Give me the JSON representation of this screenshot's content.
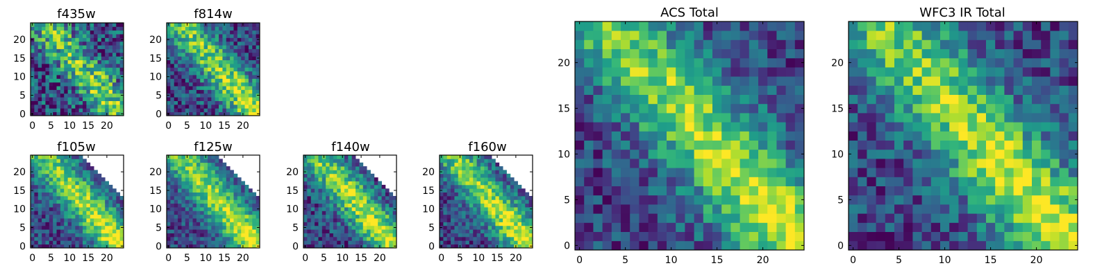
{
  "colormap": "viridis",
  "axis_color": "#000000",
  "chart_data": [
    {
      "type": "heatmap",
      "title": "f435w",
      "grid": false,
      "xlim": [
        0,
        24
      ],
      "ylim": [
        0,
        24
      ],
      "xticks": [
        "0",
        "5",
        "10",
        "15",
        "20"
      ],
      "yticks": [
        "0",
        "5",
        "10",
        "15",
        "20"
      ],
      "mask": "none",
      "band_strength": 0.55,
      "noise": 0.34,
      "seed": 11
    },
    {
      "type": "heatmap",
      "title": "f814w",
      "grid": false,
      "xlim": [
        0,
        24
      ],
      "ylim": [
        0,
        24
      ],
      "xticks": [
        "0",
        "5",
        "10",
        "15",
        "20"
      ],
      "yticks": [
        "0",
        "5",
        "10",
        "15",
        "20"
      ],
      "mask": "none",
      "band_strength": 0.65,
      "noise": 0.26,
      "seed": 23
    },
    {
      "type": "heatmap",
      "title": "f105w",
      "grid": false,
      "xlim": [
        0,
        24
      ],
      "ylim": [
        0,
        24
      ],
      "xticks": [
        "0",
        "5",
        "10",
        "15",
        "20"
      ],
      "yticks": [
        "0",
        "5",
        "10",
        "15",
        "20"
      ],
      "mask": "upper-right-triangle",
      "band_strength": 0.7,
      "noise": 0.22,
      "seed": 37
    },
    {
      "type": "heatmap",
      "title": "f125w",
      "grid": false,
      "xlim": [
        0,
        24
      ],
      "ylim": [
        0,
        24
      ],
      "xticks": [
        "0",
        "5",
        "10",
        "15",
        "20"
      ],
      "yticks": [
        "0",
        "5",
        "10",
        "15",
        "20"
      ],
      "mask": "upper-right-triangle",
      "band_strength": 0.7,
      "noise": 0.2,
      "seed": 41
    },
    {
      "type": "heatmap",
      "title": "f140w",
      "grid": false,
      "xlim": [
        0,
        24
      ],
      "ylim": [
        0,
        24
      ],
      "xticks": [
        "0",
        "5",
        "10",
        "15",
        "20"
      ],
      "yticks": [
        "0",
        "5",
        "10",
        "15",
        "20"
      ],
      "mask": "upper-right-triangle",
      "band_strength": 0.7,
      "noise": 0.24,
      "seed": 53
    },
    {
      "type": "heatmap",
      "title": "f160w",
      "grid": false,
      "xlim": [
        0,
        24
      ],
      "ylim": [
        0,
        24
      ],
      "xticks": [
        "0",
        "5",
        "10",
        "15",
        "20"
      ],
      "yticks": [
        "0",
        "5",
        "10",
        "15",
        "20"
      ],
      "mask": "upper-right-triangle",
      "band_strength": 0.7,
      "noise": 0.22,
      "seed": 67
    },
    {
      "type": "heatmap",
      "title": "ACS Total",
      "grid": false,
      "xlim": [
        0,
        24
      ],
      "ylim": [
        0,
        24
      ],
      "xticks": [
        "0",
        "5",
        "10",
        "15",
        "20"
      ],
      "yticks": [
        "0",
        "5",
        "10",
        "15",
        "20"
      ],
      "mask": "none",
      "band_strength": 0.7,
      "noise": 0.22,
      "seed": 79
    },
    {
      "type": "heatmap",
      "title": "WFC3 IR Total",
      "grid": false,
      "xlim": [
        0,
        24
      ],
      "ylim": [
        0,
        24
      ],
      "xticks": [
        "0",
        "5",
        "10",
        "15",
        "20"
      ],
      "yticks": [
        "0",
        "5",
        "10",
        "15",
        "20"
      ],
      "mask": "none",
      "band_strength": 0.7,
      "noise": 0.22,
      "seed": 97
    }
  ]
}
